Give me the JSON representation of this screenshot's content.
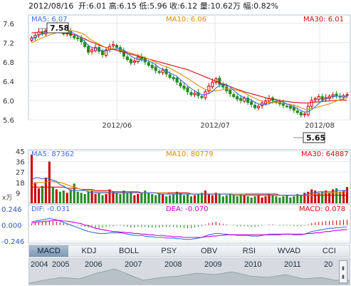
{
  "header": {
    "date": "2012/08/16",
    "text": "开:6.01  高:6.15  低:5.96  收:6.12  量:10.62万  幅:0.82%"
  },
  "colors": {
    "up": "#cc0000",
    "down": "#228b22",
    "ma5": "#3a6ee0",
    "ma10": "#e08c00",
    "ma30": "#d01010",
    "bg": "#ffffff"
  },
  "price_panel": {
    "ma5_label": "MA5: 6.07",
    "ma10_label": "MA10: 6.06",
    "ma30_label": "MA30: 6.01",
    "high_label": "7.58",
    "low_label": "5.65",
    "y_ticks": [
      "7.6",
      "7.2",
      "6.8",
      "6.4",
      "6.0",
      "5.6"
    ],
    "x_ticks": [
      "2012/06",
      "2012/07",
      "2012/08"
    ]
  },
  "volume_panel": {
    "ma5_label": "MA5: 87362",
    "ma10_label": "MA10: 80779",
    "ma30_label": "MA30: 64887",
    "y_ticks": [
      "45",
      "36",
      "27",
      "18",
      "9"
    ],
    "unit": "x万"
  },
  "macd_panel": {
    "dif_label": "DIF: -0.031",
    "dea_label": "DEA: -0.070",
    "macd_label": "MACD: 0.078",
    "y_ticks": [
      "0.246",
      "0.000",
      "-0.246"
    ]
  },
  "indicator_tabs": [
    "MACD",
    "KDJ",
    "BOLL",
    "PSY",
    "OBV",
    "RSI",
    "WVAD",
    "CCI"
  ],
  "timeline_years": [
    "2004",
    "2005",
    "2006",
    "2007",
    "2008",
    "2009",
    "2010",
    "2011",
    "20"
  ],
  "chart_data": [
    {
      "type": "candlestick",
      "title": "",
      "ylim": [
        5.6,
        7.7
      ],
      "x_ticks": [
        "2012/06",
        "2012/07",
        "2012/08"
      ],
      "close": [
        7.3,
        7.35,
        7.42,
        7.38,
        7.45,
        7.52,
        7.48,
        7.55,
        7.46,
        7.38,
        7.42,
        7.35,
        7.3,
        7.28,
        7.22,
        7.12,
        7.0,
        7.05,
        7.1,
        7.02,
        6.95,
        7.05,
        7.12,
        7.16,
        7.1,
        7.02,
        6.92,
        6.85,
        6.78,
        6.82,
        6.9,
        6.86,
        6.8,
        6.73,
        6.68,
        6.62,
        6.58,
        6.63,
        6.55,
        6.48,
        6.45,
        6.38,
        6.3,
        6.25,
        6.18,
        6.12,
        6.15,
        6.1,
        6.06,
        6.18,
        6.3,
        6.38,
        6.45,
        6.34,
        6.28,
        6.2,
        6.14,
        6.08,
        6.03,
        6.0,
        6.05,
        5.96,
        5.92,
        5.85,
        5.88,
        5.95,
        5.99,
        6.04,
        6.0,
        5.96,
        5.93,
        5.9,
        5.88,
        5.84,
        5.8,
        5.75,
        5.7,
        5.72,
        5.88,
        6.0,
        6.04,
        6.08,
        6.02,
        6.06,
        6.09,
        6.12,
        6.1,
        6.07,
        6.1,
        6.12
      ],
      "ma5": [
        7.27,
        7.31,
        7.35,
        7.38,
        7.41,
        7.45,
        7.47,
        7.49,
        7.5,
        7.48,
        7.46,
        7.42,
        7.39,
        7.35,
        7.3,
        7.22,
        7.14,
        7.1,
        7.08,
        7.06,
        7.03,
        7.03,
        7.05,
        7.06,
        7.07,
        7.07,
        7.04,
        6.99,
        6.92,
        6.88,
        6.86,
        6.84,
        6.84,
        6.82,
        6.79,
        6.74,
        6.68,
        6.65,
        6.61,
        6.57,
        6.54,
        6.5,
        6.43,
        6.37,
        6.31,
        6.25,
        6.2,
        6.16,
        6.12,
        6.12,
        6.15,
        6.19,
        6.26,
        6.31,
        6.35,
        6.33,
        6.28,
        6.21,
        6.15,
        6.09,
        6.06,
        6.03,
        6.01,
        5.96,
        5.93,
        5.91,
        5.92,
        5.93,
        5.97,
        5.99,
        5.98,
        5.97,
        5.93,
        5.9,
        5.87,
        5.83,
        5.79,
        5.76,
        5.77,
        5.81,
        5.87,
        5.94,
        6.0,
        6.04,
        6.06,
        6.08,
        6.09,
        6.09,
        6.1,
        6.07
      ],
      "ma10": [
        7.2,
        7.23,
        7.27,
        7.3,
        7.33,
        7.36,
        7.38,
        7.41,
        7.43,
        7.44,
        7.45,
        7.45,
        7.44,
        7.42,
        7.4,
        7.36,
        7.3,
        7.25,
        7.21,
        7.17,
        7.13,
        7.09,
        7.08,
        7.07,
        7.07,
        7.05,
        7.03,
        7.01,
        6.98,
        6.96,
        6.94,
        6.92,
        6.89,
        6.86,
        6.83,
        6.79,
        6.76,
        6.72,
        6.7,
        6.67,
        6.63,
        6.59,
        6.55,
        6.5,
        6.46,
        6.41,
        6.36,
        6.31,
        6.27,
        6.23,
        6.21,
        6.2,
        6.2,
        6.21,
        6.23,
        6.24,
        6.24,
        6.23,
        6.21,
        6.19,
        6.16,
        6.12,
        6.08,
        6.05,
        6.01,
        5.99,
        5.97,
        5.96,
        5.96,
        5.96,
        5.95,
        5.94,
        5.93,
        5.92,
        5.9,
        5.88,
        5.85,
        5.82,
        5.82,
        5.84,
        5.85,
        5.87,
        5.89,
        5.91,
        5.93,
        5.96,
        5.99,
        6.02,
        6.04,
        6.06
      ],
      "ma30": [
        7.4,
        7.41,
        7.42,
        7.42,
        7.43,
        7.43,
        7.43,
        7.43,
        7.42,
        7.41,
        7.4,
        7.38,
        7.36,
        7.34,
        7.31,
        7.28,
        7.24,
        7.21,
        7.18,
        7.15,
        7.12,
        7.1,
        7.08,
        7.06,
        7.04,
        7.02,
        7.0,
        6.98,
        6.96,
        6.94,
        6.92,
        6.9,
        6.88,
        6.86,
        6.84,
        6.82,
        6.8,
        6.78,
        6.76,
        6.74,
        6.72,
        6.7,
        6.68,
        6.66,
        6.64,
        6.61,
        6.58,
        6.55,
        6.52,
        6.49,
        6.46,
        6.43,
        6.4,
        6.37,
        6.34,
        6.31,
        6.29,
        6.26,
        6.23,
        6.21,
        6.18,
        6.16,
        6.14,
        6.12,
        6.1,
        6.08,
        6.06,
        6.04,
        6.03,
        6.02,
        6.0,
        5.99,
        5.98,
        5.97,
        5.96,
        5.96,
        5.95,
        5.95,
        5.95,
        5.96,
        5.97,
        5.97,
        5.98,
        5.99,
        5.99,
        6.0,
        6.0,
        6.01,
        6.01,
        6.01
      ]
    },
    {
      "type": "bar",
      "title": "",
      "ylim": [
        0,
        45
      ],
      "volume": [
        42,
        18,
        13,
        15,
        22,
        36,
        14,
        12,
        10,
        11,
        9,
        12,
        17,
        10,
        9,
        8,
        10,
        11,
        8,
        9,
        7,
        8,
        12,
        10,
        9,
        8,
        11,
        9,
        10,
        7,
        8,
        9,
        11,
        9,
        8,
        7,
        9,
        8,
        6,
        7,
        8,
        10,
        9,
        7,
        8,
        6,
        7,
        8,
        9,
        11,
        8,
        7,
        9,
        8,
        6,
        7,
        8,
        7,
        6,
        8,
        7,
        6,
        5,
        6,
        7,
        5,
        6,
        8,
        7,
        6,
        5,
        6,
        7,
        5,
        6,
        8,
        7,
        9,
        10,
        12,
        11,
        9,
        10,
        11,
        9,
        12,
        13,
        10,
        11,
        14
      ],
      "ma5": [
        20,
        22,
        22,
        21,
        22,
        21,
        20,
        19,
        16,
        15,
        13,
        11,
        11,
        11,
        11,
        11,
        10,
        9,
        9,
        9,
        9,
        9,
        9,
        9,
        9,
        9,
        9,
        9,
        9,
        9,
        9,
        9,
        9,
        9,
        9,
        9,
        8,
        8,
        8,
        8,
        8,
        8,
        8,
        8,
        8,
        8,
        8,
        8,
        8,
        8,
        8,
        8,
        8,
        8,
        8,
        8,
        8,
        7,
        7,
        7,
        7,
        7,
        7,
        7,
        7,
        7,
        7,
        7,
        7,
        7,
        7,
        7,
        7,
        7,
        7,
        7,
        7,
        7,
        8,
        9,
        9,
        10,
        10,
        10,
        10,
        10,
        11,
        11,
        11,
        11
      ],
      "ma10": [
        16,
        17,
        18,
        18,
        18,
        19,
        19,
        18,
        18,
        17,
        16,
        15,
        14,
        13,
        12,
        11,
        11,
        11,
        10,
        10,
        10,
        10,
        9,
        9,
        9,
        9,
        9,
        9,
        9,
        9,
        9,
        9,
        9,
        9,
        9,
        9,
        9,
        9,
        9,
        8,
        8,
        8,
        8,
        8,
        8,
        8,
        8,
        8,
        8,
        8,
        8,
        8,
        8,
        8,
        8,
        8,
        8,
        8,
        8,
        8,
        8,
        7,
        7,
        7,
        7,
        7,
        7,
        7,
        7,
        7,
        7,
        7,
        7,
        7,
        7,
        7,
        7,
        7,
        7,
        7,
        8,
        8,
        8,
        9,
        9,
        9,
        9,
        9,
        10,
        10
      ],
      "ma30": [
        14,
        14,
        14,
        14,
        14,
        14,
        14,
        14,
        14,
        14,
        13,
        13,
        13,
        13,
        12,
        12,
        12,
        12,
        11,
        11,
        11,
        11,
        11,
        10,
        10,
        10,
        10,
        10,
        10,
        10,
        10,
        9,
        9,
        9,
        9,
        9,
        9,
        9,
        9,
        9,
        9,
        9,
        9,
        9,
        9,
        8,
        8,
        8,
        8,
        8,
        8,
        8,
        8,
        8,
        8,
        8,
        8,
        8,
        8,
        8,
        8,
        8,
        8,
        8,
        8,
        8,
        8,
        8,
        8,
        8,
        7,
        7,
        7,
        7,
        7,
        7,
        7,
        7,
        7,
        7,
        7,
        7,
        7,
        7,
        7,
        7,
        7,
        7,
        7,
        7
      ]
    },
    {
      "type": "bar",
      "title": "",
      "ylim": [
        -0.246,
        0.246
      ],
      "macd_hist": [
        0.02,
        0.03,
        0.04,
        0.05,
        0.06,
        0.07,
        0.06,
        0.05,
        0.04,
        0.03,
        0.02,
        0.01,
        0.0,
        -0.01,
        -0.02,
        -0.03,
        -0.04,
        -0.04,
        -0.05,
        -0.05,
        -0.04,
        -0.03,
        -0.02,
        -0.02,
        -0.01,
        -0.01,
        -0.02,
        -0.03,
        -0.04,
        -0.04,
        -0.03,
        -0.03,
        -0.03,
        -0.04,
        -0.04,
        -0.04,
        -0.04,
        -0.03,
        -0.03,
        -0.03,
        -0.03,
        -0.04,
        -0.04,
        -0.05,
        -0.05,
        -0.05,
        -0.04,
        -0.03,
        -0.02,
        0.01,
        0.03,
        0.04,
        0.05,
        0.03,
        0.02,
        0.01,
        0.0,
        -0.01,
        -0.02,
        -0.02,
        -0.02,
        -0.02,
        -0.03,
        -0.03,
        -0.02,
        -0.01,
        0.0,
        0.01,
        0.01,
        0.0,
        -0.01,
        -0.01,
        -0.01,
        -0.01,
        -0.02,
        -0.02,
        -0.02,
        -0.01,
        0.01,
        0.03,
        0.04,
        0.05,
        0.05,
        0.06,
        0.06,
        0.07,
        0.07,
        0.07,
        0.08,
        0.08
      ],
      "dif": [
        0.05,
        0.06,
        0.07,
        0.08,
        0.09,
        0.1,
        0.09,
        0.08,
        0.06,
        0.04,
        0.02,
        0.0,
        -0.02,
        -0.04,
        -0.06,
        -0.08,
        -0.1,
        -0.11,
        -0.12,
        -0.13,
        -0.13,
        -0.13,
        -0.12,
        -0.12,
        -0.12,
        -0.12,
        -0.13,
        -0.14,
        -0.15,
        -0.16,
        -0.16,
        -0.16,
        -0.17,
        -0.18,
        -0.18,
        -0.19,
        -0.19,
        -0.19,
        -0.2,
        -0.2,
        -0.2,
        -0.21,
        -0.21,
        -0.22,
        -0.22,
        -0.22,
        -0.21,
        -0.2,
        -0.19,
        -0.17,
        -0.15,
        -0.14,
        -0.13,
        -0.13,
        -0.14,
        -0.14,
        -0.15,
        -0.15,
        -0.16,
        -0.16,
        -0.16,
        -0.16,
        -0.17,
        -0.17,
        -0.17,
        -0.16,
        -0.15,
        -0.14,
        -0.14,
        -0.14,
        -0.14,
        -0.14,
        -0.14,
        -0.14,
        -0.15,
        -0.15,
        -0.15,
        -0.14,
        -0.12,
        -0.1,
        -0.09,
        -0.08,
        -0.07,
        -0.06,
        -0.05,
        -0.05,
        -0.04,
        -0.04,
        -0.03,
        -0.03
      ],
      "dea": [
        0.03,
        0.04,
        0.05,
        0.05,
        0.06,
        0.06,
        0.07,
        0.07,
        0.07,
        0.06,
        0.06,
        0.05,
        0.04,
        0.03,
        0.02,
        0.0,
        -0.01,
        -0.03,
        -0.05,
        -0.06,
        -0.07,
        -0.08,
        -0.09,
        -0.1,
        -0.1,
        -0.11,
        -0.11,
        -0.12,
        -0.12,
        -0.13,
        -0.13,
        -0.14,
        -0.14,
        -0.15,
        -0.15,
        -0.16,
        -0.16,
        -0.16,
        -0.17,
        -0.17,
        -0.18,
        -0.18,
        -0.18,
        -0.19,
        -0.19,
        -0.19,
        -0.19,
        -0.19,
        -0.19,
        -0.18,
        -0.18,
        -0.17,
        -0.17,
        -0.16,
        -0.16,
        -0.15,
        -0.15,
        -0.15,
        -0.15,
        -0.15,
        -0.15,
        -0.15,
        -0.15,
        -0.15,
        -0.15,
        -0.15,
        -0.15,
        -0.15,
        -0.15,
        -0.15,
        -0.15,
        -0.14,
        -0.14,
        -0.14,
        -0.14,
        -0.14,
        -0.14,
        -0.14,
        -0.13,
        -0.13,
        -0.12,
        -0.12,
        -0.11,
        -0.1,
        -0.1,
        -0.09,
        -0.08,
        -0.08,
        -0.07,
        -0.07
      ]
    }
  ]
}
